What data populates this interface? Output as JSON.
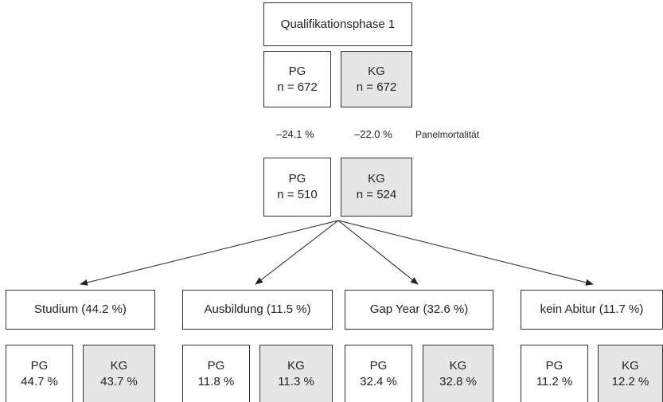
{
  "phase": "Qualifikationsphase 1",
  "initial": {
    "pg_label": "PG",
    "pg_n": "n = 672",
    "kg_label": "KG",
    "kg_n": "n = 672"
  },
  "mortality": {
    "pg": "–24.1 %",
    "kg": "–22.0 %",
    "label": "Panelmortalität"
  },
  "after": {
    "pg_label": "PG",
    "pg_n": "n = 510",
    "kg_label": "KG",
    "kg_n": "n = 524"
  },
  "outcomes": [
    {
      "title": "Studium (44.2 %)",
      "pg_label": "PG",
      "pg_pct": "44.7 %",
      "kg_label": "KG",
      "kg_pct": "43.7 %"
    },
    {
      "title": "Ausbildung (11.5 %)",
      "pg_label": "PG",
      "pg_pct": "11.8 %",
      "kg_label": "KG",
      "kg_pct": "11.3 %"
    },
    {
      "title": "Gap Year (32.6 %)",
      "pg_label": "PG",
      "pg_pct": "32.4 %",
      "kg_label": "KG",
      "kg_pct": "32.8 %"
    },
    {
      "title": "kein Abitur (11.7 %)",
      "pg_label": "PG",
      "pg_pct": "11.2 %",
      "kg_label": "KG",
      "kg_pct": "12.2 %"
    }
  ],
  "colors": {
    "pg_fill": "#ffffff",
    "kg_fill": "#e6e6e6",
    "stroke": "#333333"
  }
}
